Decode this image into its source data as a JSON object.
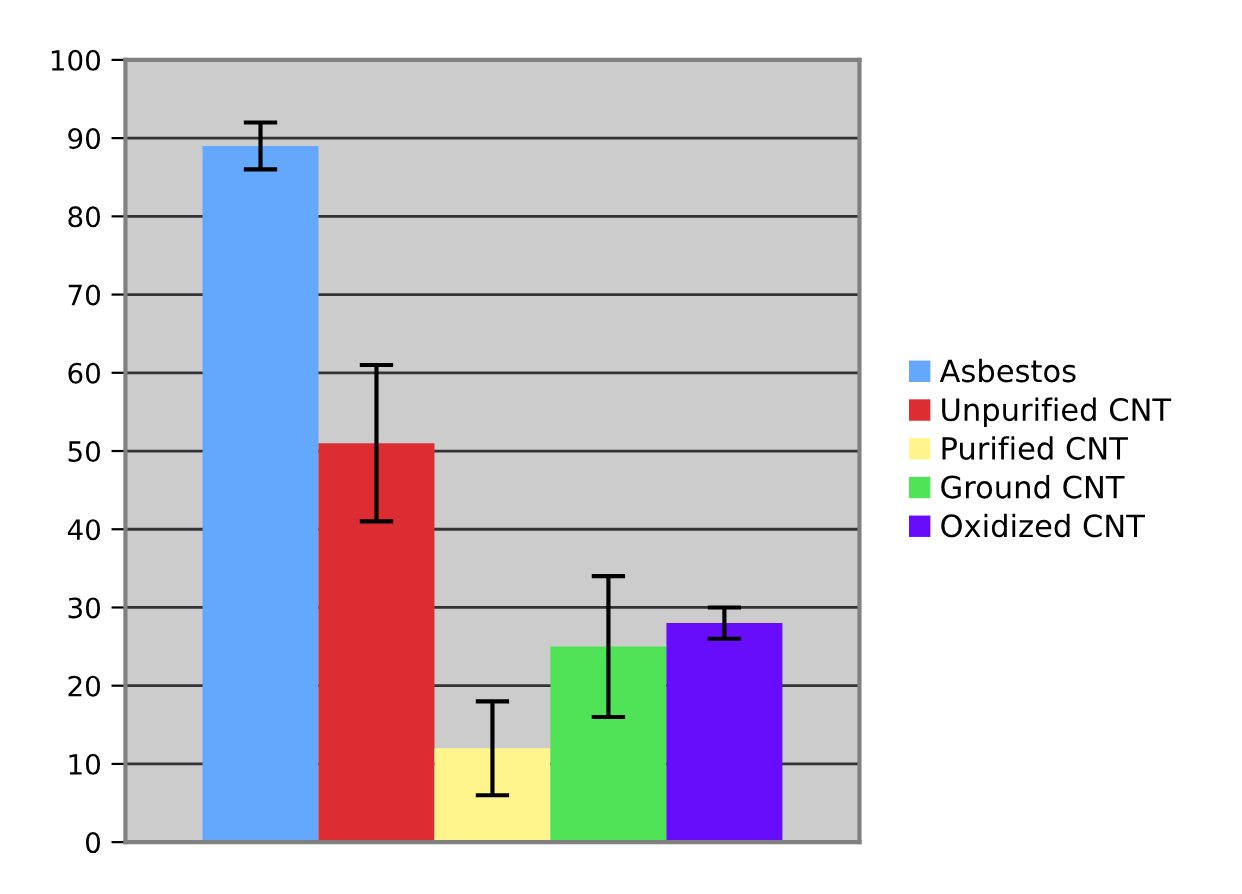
{
  "chart_data": {
    "type": "bar",
    "categories": [
      null
    ],
    "series": [
      {
        "name": "Asbestos",
        "color": "#63a8fd",
        "values": [
          89
        ],
        "errors": [
          [
            86,
            92
          ]
        ]
      },
      {
        "name": "Unpurified CNT",
        "color": "#dc2d33",
        "values": [
          51
        ],
        "errors": [
          [
            41,
            61
          ]
        ]
      },
      {
        "name": "Purified CNT",
        "color": "#fff58c",
        "values": [
          12
        ],
        "errors": [
          [
            6,
            18
          ]
        ]
      },
      {
        "name": "Ground CNT",
        "color": "#50e358",
        "values": [
          25
        ],
        "errors": [
          [
            16,
            34
          ]
        ]
      },
      {
        "name": "Oxidized CNT",
        "color": "#680cfc",
        "values": [
          28
        ],
        "errors": [
          [
            26,
            30
          ]
        ]
      }
    ],
    "ylim": [
      0,
      100
    ],
    "yticks": [
      0,
      10,
      20,
      30,
      40,
      50,
      60,
      70,
      80,
      90,
      100
    ],
    "grid": "y",
    "legend": "right"
  }
}
